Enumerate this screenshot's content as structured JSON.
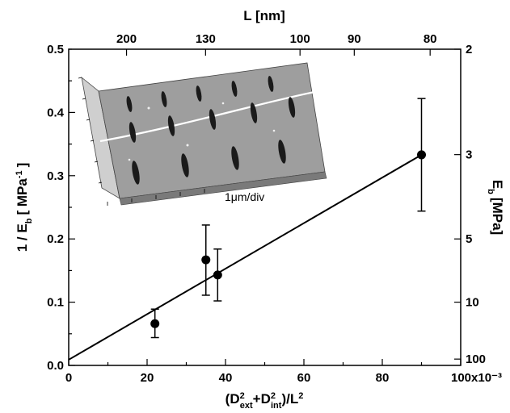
{
  "chart_data": {
    "type": "scatter",
    "xlabel": "(D",
    "xlabel_sup1": "2",
    "xlabel_sub1": "ext",
    "xlabel_plus": "+D",
    "xlabel_sup2": "2",
    "xlabel_sub2": "int",
    "xlabel_tail": ")/L",
    "xlabel_sup3": "2",
    "x_tick_labels": [
      "0",
      "20",
      "40",
      "60",
      "80",
      "100x10⁻³"
    ],
    "x_ticks": [
      0,
      0.02,
      0.04,
      0.06,
      0.08,
      0.1
    ],
    "xlim": [
      0,
      0.1
    ],
    "ylabel": "1 / E",
    "ylabel_sub": "b",
    "ylabel_unit": "[ MPa",
    "ylabel_unit_sup": "-1",
    "ylabel_close": "]",
    "y_ticks": [
      0.0,
      0.1,
      0.2,
      0.3,
      0.4,
      0.5
    ],
    "y_tick_labels": [
      "0.0",
      "0.1",
      "0.2",
      "0.3",
      "0.4",
      "0.5"
    ],
    "ylim": [
      0,
      0.5
    ],
    "top_axis": {
      "label": "L [nm]",
      "tick_labels": [
        "200",
        "130",
        "100",
        "90",
        "80"
      ]
    },
    "right_axis": {
      "label": "E",
      "label_sub": "b",
      "label_unit": "[MPa]",
      "tick_labels": [
        "2",
        "3",
        "5",
        "10",
        "100"
      ],
      "tick_values": [
        2,
        3,
        5,
        10,
        100
      ]
    },
    "points": [
      {
        "x": 0.022,
        "y": 0.066,
        "err_low": 0.044,
        "err_high": 0.089
      },
      {
        "x": 0.035,
        "y": 0.167,
        "err_low": 0.111,
        "err_high": 0.222
      },
      {
        "x": 0.038,
        "y": 0.143,
        "err_low": 0.102,
        "err_high": 0.184
      },
      {
        "x": 0.09,
        "y": 0.333,
        "err_low": 0.244,
        "err_high": 0.422
      }
    ],
    "fit_line": {
      "x": [
        0,
        0.09
      ],
      "y": [
        0.009,
        0.333
      ]
    },
    "inset": {
      "label": "1μm/div"
    }
  }
}
